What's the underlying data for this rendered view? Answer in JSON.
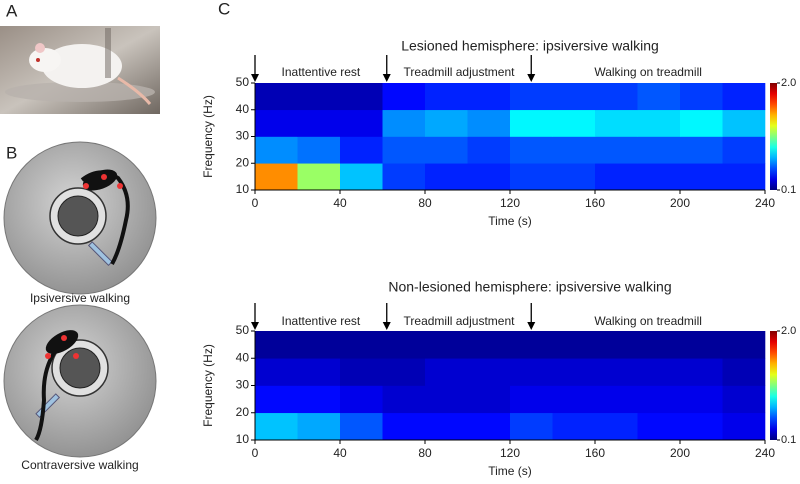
{
  "panel_labels": [
    "A",
    "B",
    "C"
  ],
  "panel_b": {
    "labels": [
      "Ipsiversive walking",
      "Contraversive walking"
    ]
  },
  "chart_data": [
    {
      "type": "heatmap",
      "title": "Lesioned hemisphere: ipsiversive walking",
      "x_label": "Time (s)",
      "y_label": "Frequency (Hz)",
      "xlim": [
        0,
        240
      ],
      "xticks": [
        0,
        40,
        80,
        120,
        160,
        200,
        240
      ],
      "ylim": [
        10,
        50
      ],
      "yticks": [
        10,
        20,
        30,
        40,
        50
      ],
      "event_times": [
        0,
        62,
        130
      ],
      "phases": [
        "Inattentive rest",
        "Treadmill adjustment",
        "Walking on treadmill"
      ],
      "x_bins": [
        0,
        20,
        40,
        60,
        80,
        100,
        120,
        140,
        160,
        180,
        200,
        220,
        240
      ],
      "y_bins": [
        10,
        20,
        30,
        40,
        50
      ],
      "values": [
        [
          1.5,
          1.1,
          0.7,
          0.45,
          0.4,
          0.4,
          0.45,
          0.45,
          0.4,
          0.4,
          0.4,
          0.4
        ],
        [
          0.6,
          0.55,
          0.4,
          0.5,
          0.5,
          0.45,
          0.5,
          0.5,
          0.5,
          0.5,
          0.5,
          0.45
        ],
        [
          0.3,
          0.3,
          0.3,
          0.6,
          0.65,
          0.6,
          0.8,
          0.8,
          0.75,
          0.75,
          0.8,
          0.7
        ],
        [
          0.2,
          0.2,
          0.2,
          0.35,
          0.4,
          0.4,
          0.45,
          0.45,
          0.45,
          0.5,
          0.45,
          0.4
        ]
      ],
      "colorbar": {
        "lim": [
          0.1,
          2
        ],
        "ticks": [
          0.1,
          {
            "value": 2,
            "label": "2.0"
          }
        ],
        "colormap": "jet"
      }
    },
    {
      "type": "heatmap",
      "title": "Non-lesioned hemisphere: ipsiversive walking",
      "x_label": "Time (s)",
      "y_label": "Frequency (Hz)",
      "xlim": [
        0,
        240
      ],
      "xticks": [
        0,
        40,
        80,
        120,
        160,
        200,
        240
      ],
      "ylim": [
        10,
        50
      ],
      "yticks": [
        10,
        20,
        30,
        40,
        50
      ],
      "event_times": [
        0,
        62,
        130
      ],
      "phases": [
        "Inattentive rest",
        "Treadmill adjustment",
        "Walking on treadmill"
      ],
      "x_bins": [
        0,
        20,
        40,
        60,
        80,
        100,
        120,
        140,
        160,
        180,
        200,
        220,
        240
      ],
      "y_bins": [
        10,
        20,
        30,
        40,
        50
      ],
      "values": [
        [
          0.7,
          0.65,
          0.5,
          0.35,
          0.35,
          0.35,
          0.45,
          0.4,
          0.4,
          0.35,
          0.35,
          0.3
        ],
        [
          0.35,
          0.35,
          0.3,
          0.25,
          0.25,
          0.25,
          0.3,
          0.3,
          0.3,
          0.3,
          0.3,
          0.25
        ],
        [
          0.25,
          0.25,
          0.2,
          0.2,
          0.25,
          0.25,
          0.25,
          0.25,
          0.25,
          0.25,
          0.25,
          0.2
        ],
        [
          0.15,
          0.15,
          0.15,
          0.15,
          0.15,
          0.15,
          0.15,
          0.15,
          0.15,
          0.15,
          0.15,
          0.15
        ]
      ],
      "colorbar": {
        "lim": [
          0.1,
          2
        ],
        "ticks": [
          0.1,
          {
            "value": 2,
            "label": "2.0"
          }
        ],
        "colormap": "jet"
      }
    }
  ]
}
